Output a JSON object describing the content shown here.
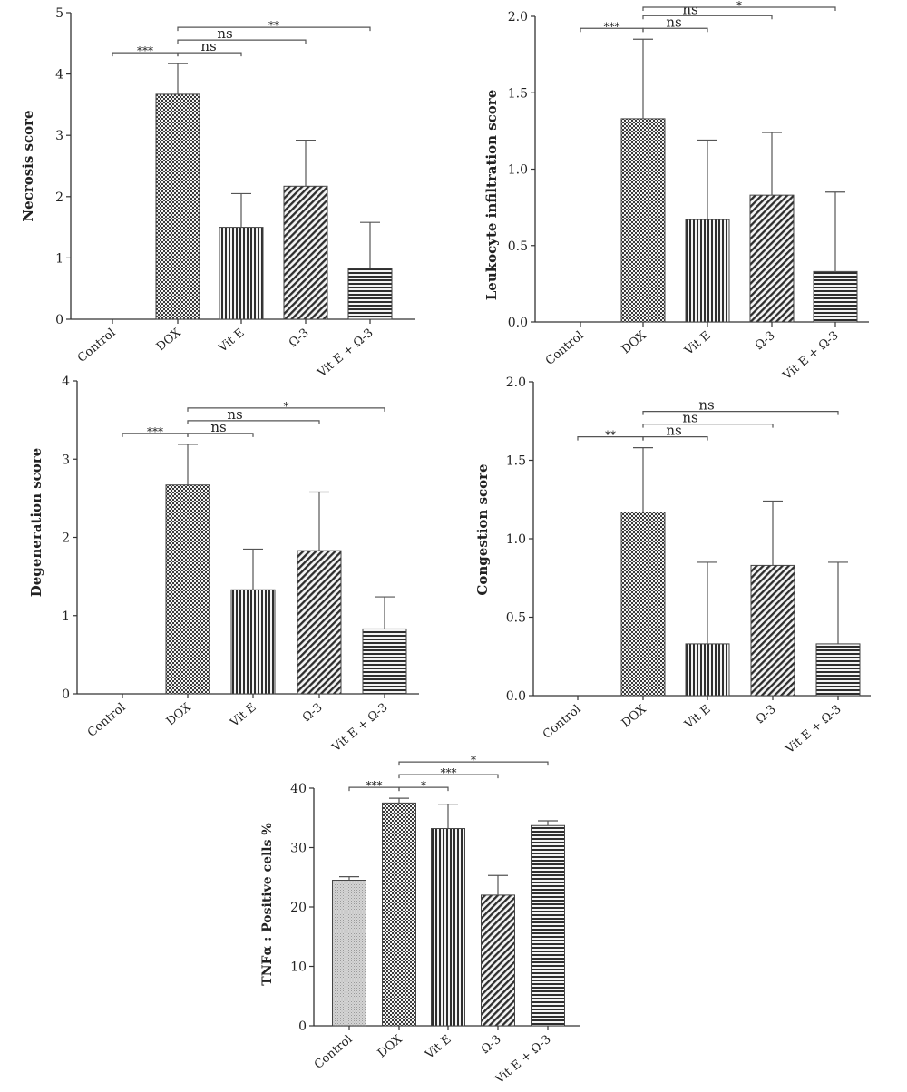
{
  "chart_data": [
    {
      "type": "bar",
      "ylabel": "Necrosis score",
      "categories": [
        "Control",
        "DOX",
        "Vit E",
        "Ω-3",
        "Vit E + Ω-3"
      ],
      "values": [
        0,
        3.67,
        1.5,
        2.17,
        0.83
      ],
      "errors": [
        0,
        0.5,
        0.55,
        0.75,
        0.75
      ],
      "ylim": [
        0,
        5
      ],
      "yticks": [
        "0",
        "1",
        "2",
        "3",
        "4",
        "5"
      ],
      "grid": false,
      "significance": [
        {
          "from": 0,
          "to": 1,
          "label": "***"
        },
        {
          "from": 1,
          "to": 2,
          "label": "ns"
        },
        {
          "from": 1,
          "to": 3,
          "label": "ns"
        },
        {
          "from": 1,
          "to": 4,
          "label": "**"
        }
      ]
    },
    {
      "type": "bar",
      "ylabel": "Leukocyte infiltration score",
      "categories": [
        "Control",
        "DOX",
        "Vit E",
        "Ω-3",
        "Vit E + Ω-3"
      ],
      "values": [
        0,
        1.33,
        0.67,
        0.83,
        0.33
      ],
      "errors": [
        0,
        0.52,
        0.52,
        0.41,
        0.52
      ],
      "ylim": [
        0,
        2
      ],
      "yticks": [
        "0.0",
        "0.5",
        "1.0",
        "1.5",
        "2.0"
      ],
      "grid": false,
      "significance": [
        {
          "from": 0,
          "to": 1,
          "label": "***"
        },
        {
          "from": 1,
          "to": 2,
          "label": "ns"
        },
        {
          "from": 1,
          "to": 3,
          "label": "ns"
        },
        {
          "from": 1,
          "to": 4,
          "label": "*"
        }
      ]
    },
    {
      "type": "bar",
      "ylabel": "Degeneration score",
      "categories": [
        "Control",
        "DOX",
        "Vit E",
        "Ω-3",
        "Vit E + Ω-3"
      ],
      "values": [
        0,
        2.67,
        1.33,
        1.83,
        0.83
      ],
      "errors": [
        0,
        0.52,
        0.52,
        0.75,
        0.41
      ],
      "ylim": [
        0,
        4
      ],
      "yticks": [
        "0",
        "1",
        "2",
        "3",
        "4"
      ],
      "grid": false,
      "significance": [
        {
          "from": 0,
          "to": 1,
          "label": "***"
        },
        {
          "from": 1,
          "to": 2,
          "label": "ns"
        },
        {
          "from": 1,
          "to": 3,
          "label": "ns"
        },
        {
          "from": 1,
          "to": 4,
          "label": "*"
        }
      ]
    },
    {
      "type": "bar",
      "ylabel": "Congestion score",
      "categories": [
        "Control",
        "DOX",
        "Vit E",
        "Ω-3",
        "Vit E + Ω-3"
      ],
      "values": [
        0,
        1.17,
        0.33,
        0.83,
        0.33
      ],
      "errors": [
        0,
        0.41,
        0.52,
        0.41,
        0.52
      ],
      "ylim": [
        0,
        2
      ],
      "yticks": [
        "0.0",
        "0.5",
        "1.0",
        "1.5",
        "2.0"
      ],
      "grid": false,
      "significance": [
        {
          "from": 0,
          "to": 1,
          "label": "**"
        },
        {
          "from": 1,
          "to": 2,
          "label": "ns"
        },
        {
          "from": 1,
          "to": 3,
          "label": "ns"
        },
        {
          "from": 1,
          "to": 4,
          "label": "ns"
        }
      ]
    },
    {
      "type": "bar",
      "ylabel": "TNFα : Positive cells %",
      "categories": [
        "Control",
        "DOX",
        "Vit E",
        "Ω-3",
        "Vit E + Ω-3"
      ],
      "values": [
        24.5,
        37.5,
        33.2,
        22.0,
        33.7
      ],
      "errors": [
        0.6,
        0.8,
        4.1,
        3.3,
        0.8
      ],
      "ylim": [
        0,
        40
      ],
      "yticks": [
        "0",
        "10",
        "20",
        "30",
        "40"
      ],
      "grid": false,
      "significance": [
        {
          "from": 0,
          "to": 1,
          "label": "***"
        },
        {
          "from": 1,
          "to": 2,
          "label": "*"
        },
        {
          "from": 1,
          "to": 3,
          "label": "***"
        },
        {
          "from": 1,
          "to": 4,
          "label": "*"
        }
      ]
    }
  ]
}
